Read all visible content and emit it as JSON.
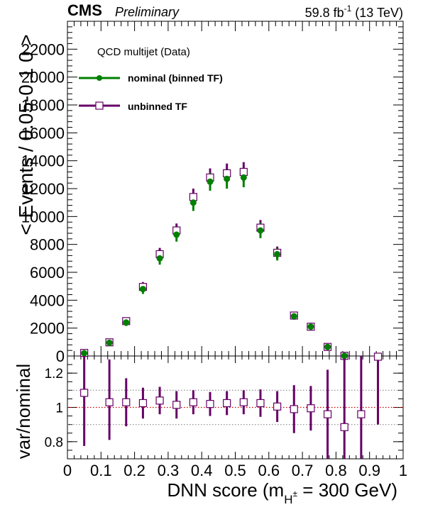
{
  "header": {
    "experiment": "CMS",
    "status": "Preliminary",
    "lumi_prefix": "59.8 fb",
    "lumi_exp": "-1",
    "lumi_suffix": " (13 TeV)"
  },
  "legend": {
    "title": "QCD multijet (Data)",
    "entries": [
      "nominal (binned TF)",
      "unbinned TF"
    ]
  },
  "axes": {
    "ylabel_top": "< Events / 0.05-0.1 0 >",
    "ylabel_bottom": "var/nominal",
    "xlabel_main": "DNN score (m",
    "xlabel_sub": "H",
    "xlabel_sup": "±",
    "xlabel_tail": " = 300 GeV)"
  },
  "colors": {
    "nominal": "#008000",
    "unbinned": "#660066",
    "ref_line": "#cc0000",
    "band_line": "#888888"
  },
  "chart_data": [
    {
      "type": "scatter",
      "panel": "main",
      "x": [
        0.05,
        0.125,
        0.175,
        0.225,
        0.275,
        0.325,
        0.375,
        0.425,
        0.475,
        0.525,
        0.575,
        0.625,
        0.675,
        0.725,
        0.775,
        0.825
      ],
      "xlim": [
        0,
        1
      ],
      "ylim": [
        0,
        24000
      ],
      "yticks": [
        0,
        2000,
        4000,
        6000,
        8000,
        10000,
        12000,
        14000,
        16000,
        18000,
        20000,
        22000
      ],
      "xticks": [
        "0",
        "0.1",
        "0.2",
        "0.3",
        "0.4",
        "0.5",
        "0.6",
        "0.7",
        "0.8",
        "0.9",
        "1"
      ],
      "series": [
        {
          "name": "nominal (binned TF)",
          "style": "filled-circle",
          "values": [
            200,
            950,
            2400,
            4800,
            7000,
            8700,
            11000,
            12500,
            12700,
            12800,
            9000,
            7300,
            2850,
            2100,
            650,
            10
          ],
          "errors": [
            80,
            150,
            250,
            350,
            450,
            500,
            600,
            650,
            700,
            700,
            550,
            450,
            250,
            200,
            120,
            40
          ]
        },
        {
          "name": "unbinned TF",
          "style": "open-square",
          "values": [
            220,
            980,
            2500,
            4950,
            7300,
            9000,
            11400,
            12800,
            13100,
            13200,
            9200,
            7400,
            2900,
            2100,
            650,
            10
          ],
          "errors": [
            80,
            150,
            250,
            350,
            450,
            500,
            600,
            650,
            700,
            700,
            550,
            450,
            250,
            200,
            120,
            40
          ]
        }
      ]
    },
    {
      "type": "scatter",
      "panel": "ratio",
      "x": [
        0.05,
        0.125,
        0.175,
        0.225,
        0.275,
        0.325,
        0.375,
        0.425,
        0.475,
        0.525,
        0.575,
        0.625,
        0.675,
        0.725,
        0.775,
        0.825,
        0.875,
        0.925
      ],
      "ylim": [
        0.7,
        1.3
      ],
      "yticks": [
        "0.8",
        "1",
        "1.2"
      ],
      "reference_lines": [
        1.0,
        0.9,
        1.1
      ],
      "series": [
        {
          "name": "unbinned TF",
          "style": "open-square",
          "values": [
            1.085,
            1.03,
            1.03,
            1.025,
            1.04,
            1.015,
            1.03,
            1.02,
            1.025,
            1.03,
            1.025,
            1.005,
            0.99,
            0.995,
            0.96,
            0.885,
            0.96,
            1.3
          ],
          "err_low": [
            0.31,
            0.22,
            0.14,
            0.09,
            0.08,
            0.08,
            0.07,
            0.07,
            0.07,
            0.07,
            0.08,
            0.09,
            0.14,
            0.13,
            0.26,
            0.4,
            0.4,
            0.4
          ],
          "err_high": [
            0.31,
            0.25,
            0.14,
            0.09,
            0.08,
            0.08,
            0.07,
            0.07,
            0.07,
            0.07,
            0.08,
            0.09,
            0.14,
            0.13,
            0.26,
            0.4,
            0.4,
            0.4
          ]
        }
      ]
    }
  ]
}
